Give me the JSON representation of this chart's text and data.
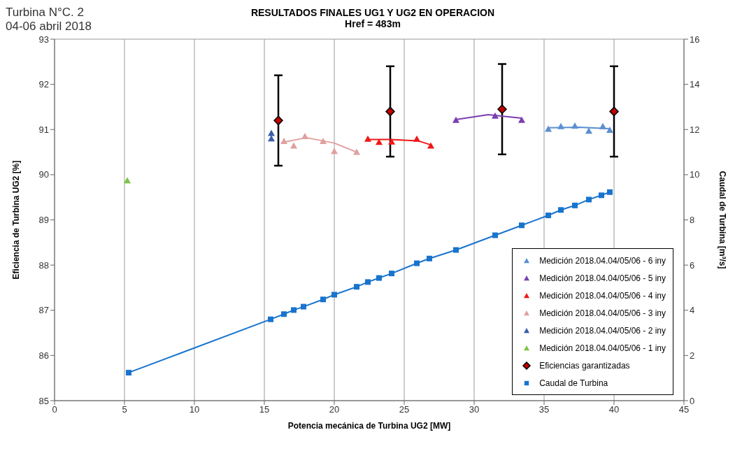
{
  "chart_data": {
    "type": "scatter",
    "title": "RESULTADOS FINALES UG1 Y UG2 EN OPERACION",
    "subtitle": "Href = 483m",
    "annotations": [
      "Turbina N°C. 2",
      "04-06 abril 2018"
    ],
    "xlabel": "Potencia mecánica de Turbina UG2 [MW]",
    "ylabel": "Eficiencia de Turbina UG2 [%]",
    "y2label": "Caudal de Turbina [m³/s]",
    "xlim": [
      0,
      45
    ],
    "xticks": [
      0,
      5,
      10,
      15,
      20,
      25,
      30,
      35,
      40,
      45
    ],
    "ylim": [
      85,
      93
    ],
    "yticks": [
      85,
      86,
      87,
      88,
      89,
      90,
      91,
      92,
      93
    ],
    "y2lim": [
      0,
      16
    ],
    "y2ticks": [
      0,
      2,
      4,
      6,
      8,
      10,
      12,
      14,
      16
    ],
    "grid": true,
    "legend": "bottom right",
    "marker": "triangle",
    "series": [
      {
        "name": "Medición 2018.04.04/05/06 - 6 iny",
        "color": "#5b8fd0",
        "x": [
          35.3,
          36.2,
          37.2,
          38.2,
          39.2,
          39.7
        ],
        "values": [
          91.01,
          91.07,
          91.08,
          90.97,
          91.07,
          90.99
        ]
      },
      {
        "name": "Medición 2018.04.04/05/06 - 5 iny",
        "color": "#7b3fb0",
        "x": [
          28.7,
          31.5,
          33.4
        ],
        "values": [
          91.21,
          91.3,
          91.21
        ]
      },
      {
        "name": "Medición 2018.04.04/05/06 - 4 iny",
        "color": "#f01818",
        "x": [
          22.4,
          23.2,
          24.1,
          25.9,
          26.9
        ],
        "values": [
          90.79,
          90.72,
          90.73,
          90.79,
          90.64
        ]
      },
      {
        "name": "Medición 2018.04.04/05/06 - 3 iny",
        "color": "#e0a0a0",
        "x": [
          16.4,
          17.1,
          17.9,
          19.2,
          20.0,
          21.6
        ],
        "values": [
          90.74,
          90.64,
          90.85,
          90.74,
          90.52,
          90.5
        ]
      },
      {
        "name": "Medición 2018.04.04/05/06 - 2 iny",
        "color": "#3a5ea8",
        "x": [
          15.5,
          15.5
        ],
        "values": [
          90.92,
          90.8
        ]
      },
      {
        "name": "Medición 2018.04.04/05/06 - 1 iny",
        "color": "#7cc444",
        "x": [
          5.2
        ],
        "values": [
          89.87
        ]
      },
      {
        "name": "Eficiencias garantizadas",
        "color": "#c00000",
        "marker": "diamond",
        "x": [
          16,
          24,
          32,
          40
        ],
        "values": [
          91.2,
          91.4,
          91.45,
          91.4
        ],
        "errors": [
          1,
          1,
          1,
          1
        ]
      },
      {
        "name": "Caudal de Turbina",
        "type": "line",
        "axis": "y2",
        "marker": "square",
        "color": "#1874cd",
        "x": [
          5.3,
          15.45,
          16.4,
          17.1,
          17.8,
          19.2,
          20.0,
          21.6,
          22.4,
          23.2,
          24.1,
          25.9,
          26.8,
          28.7,
          31.5,
          33.4,
          35.3,
          36.2,
          37.2,
          38.2,
          39.1,
          39.7
        ],
        "values": [
          1.24,
          3.6,
          3.83,
          4.01,
          4.16,
          4.48,
          4.69,
          5.04,
          5.25,
          5.43,
          5.63,
          6.08,
          6.29,
          6.67,
          7.32,
          7.76,
          8.2,
          8.44,
          8.64,
          8.9,
          9.09,
          9.23
        ]
      },
      {
        "type": "line",
        "marker": "none",
        "color": "#e0a0a0",
        "x": [
          16.4,
          18,
          20,
          21.6
        ],
        "values": [
          90.72,
          90.82,
          90.7,
          90.5
        ]
      },
      {
        "type": "line",
        "marker": "none",
        "color": "#f01818",
        "x": [
          22.4,
          24,
          26,
          27
        ],
        "values": [
          90.78,
          90.78,
          90.75,
          90.65
        ]
      },
      {
        "type": "line",
        "marker": "none",
        "color": "#7b3fb0",
        "x": [
          28.7,
          31,
          33.4
        ],
        "values": [
          91.22,
          91.33,
          91.25
        ]
      },
      {
        "type": "line",
        "marker": "none",
        "color": "#5b8fd0",
        "x": [
          35.3,
          37.5,
          39.7
        ],
        "values": [
          91.04,
          91.05,
          91.02
        ]
      }
    ]
  }
}
